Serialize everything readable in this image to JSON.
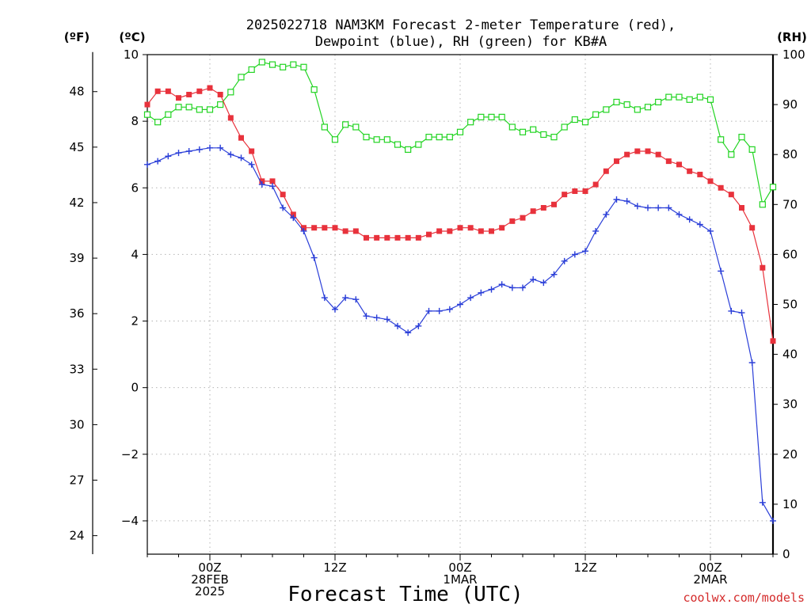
{
  "chart_data": {
    "type": "line",
    "title": [
      "2025022718 NAM3KM Forecast 2-meter Temperature (red),",
      "Dewpoint (blue), RH (green) for KB#A"
    ],
    "xlabel": "Forecast Time (UTC)",
    "credit": "coolwx.com/models",
    "unit_left_f": "(ºF)",
    "unit_left_c": "(ºC)",
    "unit_right": "(RH)",
    "x_start_hour": -6,
    "x_end_hour": 54,
    "x_ticks": [
      {
        "hour": 0,
        "lines": [
          "00Z",
          "28FEB",
          "2025"
        ]
      },
      {
        "hour": 12,
        "lines": [
          "12Z"
        ]
      },
      {
        "hour": 24,
        "lines": [
          "00Z",
          "1MAR"
        ]
      },
      {
        "hour": 36,
        "lines": [
          "12Z"
        ]
      },
      {
        "hour": 48,
        "lines": [
          "00Z",
          "2MAR"
        ]
      }
    ],
    "y_c_range": [
      -5,
      10
    ],
    "y_c_ticks": [
      10,
      8,
      6,
      4,
      2,
      0,
      -2,
      -4
    ],
    "y_f_ticks": [
      48,
      45,
      42,
      39,
      36,
      33,
      30,
      27,
      24
    ],
    "y_rh_range": [
      0,
      100
    ],
    "y_rh_ticks": [
      100,
      90,
      80,
      70,
      60,
      50,
      40,
      30,
      20,
      10,
      0
    ],
    "hours": [
      -6,
      -5,
      -4,
      -3,
      -2,
      -1,
      0,
      1,
      2,
      3,
      4,
      5,
      6,
      7,
      8,
      9,
      10,
      11,
      12,
      13,
      14,
      15,
      16,
      17,
      18,
      19,
      20,
      21,
      22,
      23,
      24,
      25,
      26,
      27,
      28,
      29,
      30,
      31,
      32,
      33,
      34,
      35,
      36,
      37,
      38,
      39,
      40,
      41,
      42,
      43,
      44,
      45,
      46,
      47,
      48,
      49,
      50,
      51,
      52,
      53,
      54
    ],
    "series": [
      {
        "name": "Temperature",
        "color": "#e8323c",
        "marker": "filled-square",
        "axis": "celsius",
        "values": [
          8.5,
          8.9,
          8.9,
          8.7,
          8.8,
          8.9,
          9.0,
          8.8,
          8.1,
          7.5,
          7.1,
          6.2,
          6.2,
          5.8,
          5.2,
          4.8,
          4.8,
          4.8,
          4.8,
          4.7,
          4.7,
          4.5,
          4.5,
          4.5,
          4.5,
          4.5,
          4.5,
          4.6,
          4.7,
          4.7,
          4.8,
          4.8,
          4.7,
          4.7,
          4.8,
          5.0,
          5.1,
          5.3,
          5.4,
          5.5,
          5.8,
          5.9,
          5.9,
          6.1,
          6.5,
          6.8,
          7.0,
          7.1,
          7.1,
          7.0,
          6.8,
          6.7,
          6.5,
          6.4,
          6.2,
          6.0,
          5.8,
          5.4,
          4.8,
          3.6,
          1.4
        ]
      },
      {
        "name": "Dewpoint",
        "color": "#2a3ed8",
        "marker": "plus",
        "axis": "celsius",
        "values": [
          6.7,
          6.8,
          6.95,
          7.05,
          7.1,
          7.15,
          7.2,
          7.2,
          7.0,
          6.9,
          6.7,
          6.1,
          6.05,
          5.4,
          5.1,
          4.7,
          3.9,
          2.7,
          2.35,
          2.7,
          2.65,
          2.15,
          2.1,
          2.05,
          1.85,
          1.65,
          1.85,
          2.3,
          2.3,
          2.35,
          2.5,
          2.7,
          2.85,
          2.95,
          3.1,
          3.0,
          3.0,
          3.25,
          3.15,
          3.4,
          3.8,
          4.0,
          4.1,
          4.7,
          5.2,
          5.65,
          5.6,
          5.45,
          5.4,
          5.4,
          5.4,
          5.2,
          5.05,
          4.9,
          4.7,
          3.5,
          2.3,
          2.25,
          0.75,
          -3.45,
          -4.0
        ]
      },
      {
        "name": "RH",
        "color": "#22d422",
        "marker": "open-square",
        "axis": "rh",
        "values": [
          88,
          86.5,
          88,
          89.5,
          89.5,
          89,
          89,
          90,
          92.5,
          95.5,
          97,
          98.5,
          98,
          97.5,
          98,
          97.5,
          93,
          85.5,
          83,
          86,
          85.5,
          83.5,
          83,
          83,
          82,
          81,
          82,
          83.5,
          83.5,
          83.5,
          84.5,
          86.5,
          87.5,
          87.5,
          87.5,
          85.5,
          84.5,
          85,
          84,
          83.5,
          85.5,
          87,
          86.5,
          88,
          89,
          90.5,
          90,
          89,
          89.5,
          90.5,
          91.5,
          91.5,
          91,
          91.5,
          91,
          83,
          80,
          83.5,
          81,
          70,
          73.5
        ]
      }
    ]
  }
}
